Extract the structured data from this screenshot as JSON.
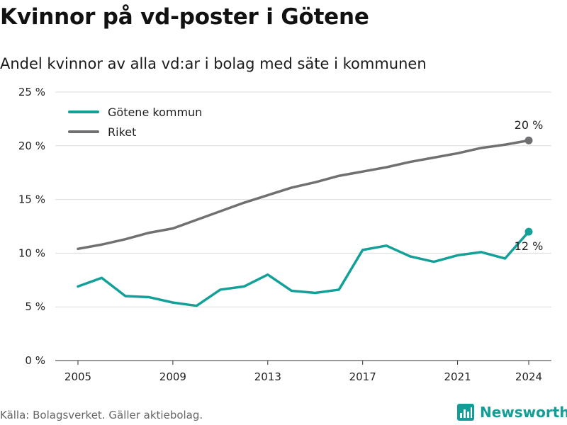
{
  "header": {
    "title": "Kvinnor på vd-poster i Götene",
    "subtitle": "Andel kvinnor av alla vd:ar i bolag med säte i kommunen"
  },
  "footer": {
    "source": "Källa: Bolagsverket. Gäller aktiebolag.",
    "brand": "Newsworthy"
  },
  "colors": {
    "gotene": "#12a098",
    "riket": "#707073",
    "grid": "#dcdcdc",
    "axis": "#333333",
    "brand": "#129e96"
  },
  "icons": {
    "brand_logo": "bar-chart-logo-icon"
  },
  "chart_data": {
    "type": "line",
    "x": [
      2005,
      2006,
      2007,
      2008,
      2009,
      2010,
      2011,
      2012,
      2013,
      2014,
      2015,
      2016,
      2017,
      2018,
      2019,
      2020,
      2021,
      2022,
      2023,
      2024
    ],
    "x_tick_labels": [
      "2005",
      "2009",
      "2013",
      "2017",
      "2021",
      "2024"
    ],
    "y_tick_labels": [
      "0 %",
      "5 %",
      "10 %",
      "15 %",
      "20 %",
      "25 %"
    ],
    "y_ticks": [
      0,
      5,
      10,
      15,
      20,
      25
    ],
    "x_ticks": [
      2005,
      2009,
      2013,
      2017,
      2021,
      2024
    ],
    "ylim": [
      0,
      25
    ],
    "grid": true,
    "legend_position": "top-left",
    "series": [
      {
        "name": "Götene kommun",
        "color": "#12a098",
        "values": [
          6.9,
          7.7,
          6.0,
          5.9,
          5.4,
          5.1,
          6.6,
          6.9,
          8.0,
          6.5,
          6.3,
          6.6,
          10.3,
          10.7,
          9.7,
          9.2,
          9.8,
          10.1,
          9.5,
          12.0
        ],
        "end_label": "12 %"
      },
      {
        "name": "Riket",
        "color": "#707073",
        "values": [
          10.4,
          10.8,
          11.3,
          11.9,
          12.3,
          13.1,
          13.9,
          14.7,
          15.4,
          16.1,
          16.6,
          17.2,
          17.6,
          18.0,
          18.5,
          18.9,
          19.3,
          19.8,
          20.1,
          20.5
        ],
        "end_label": "20 %"
      }
    ]
  }
}
